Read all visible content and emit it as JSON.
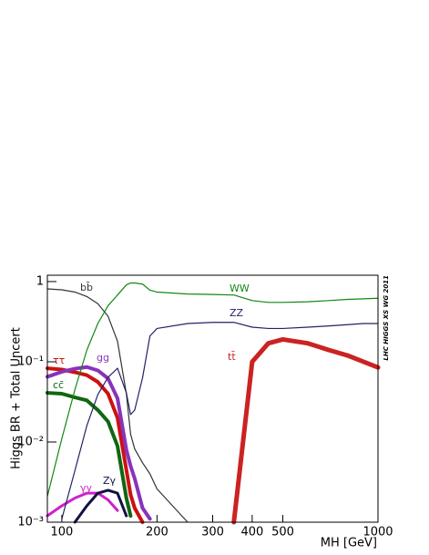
{
  "chart_data": {
    "type": "line",
    "y_label": "Higgs BR + Total Uncert",
    "x_label": "MH [GeV]",
    "annotation": "LHC HIGGS XS WG 2011",
    "xscale": "log",
    "yscale": "log",
    "xlim": [
      90,
      1000
    ],
    "ylim": [
      0.001,
      1.2
    ],
    "xticks": [
      100,
      200,
      300,
      400,
      500,
      1000
    ],
    "yticks": [
      {
        "value": 1,
        "label": "1"
      },
      {
        "value": 0.1,
        "label": "10⁻¹"
      },
      {
        "value": 0.01,
        "label": "10⁻²"
      },
      {
        "value": 0.001,
        "label": "10⁻³"
      }
    ],
    "x": [
      90,
      100,
      110,
      120,
      130,
      140,
      150,
      160,
      165,
      170,
      180,
      190,
      200,
      250,
      300,
      350,
      400,
      450,
      500,
      600,
      700,
      800,
      900,
      1000
    ],
    "series": [
      {
        "name": "bb̄",
        "color": "#333333",
        "values": [
          0.81,
          0.79,
          0.74,
          0.65,
          0.53,
          0.37,
          0.18,
          0.04,
          0.0125,
          0.0082,
          0.0055,
          0.004,
          0.0026,
          0.001,
          null,
          null,
          null,
          null,
          null,
          null,
          null,
          null,
          null,
          null
        ]
      },
      {
        "name": "ττ",
        "color": "#cc1111",
        "values": [
          0.083,
          0.08,
          0.074,
          0.068,
          0.056,
          0.04,
          0.02,
          0.0045,
          0.0022,
          0.0015,
          0.001,
          null,
          null,
          null,
          null,
          null,
          null,
          null,
          null,
          null,
          null,
          null,
          null,
          null
        ]
      },
      {
        "name": "cc̄",
        "color": "#116611",
        "values": [
          0.041,
          0.04,
          0.036,
          0.033,
          0.025,
          0.018,
          0.0089,
          0.002,
          0.0012,
          null,
          null,
          null,
          null,
          null,
          null,
          null,
          null,
          null,
          null,
          null,
          null,
          null,
          null,
          null
        ]
      },
      {
        "name": "gg",
        "color": "#8833bb",
        "values": [
          0.065,
          0.075,
          0.082,
          0.086,
          0.078,
          0.062,
          0.035,
          0.008,
          0.005,
          0.0035,
          0.0015,
          0.0011,
          null,
          null,
          null,
          null,
          null,
          null,
          null,
          null,
          null,
          null,
          null,
          null
        ]
      },
      {
        "name": "γγ",
        "color": "#cc22cc",
        "values": [
          0.0012,
          0.0016,
          0.002,
          0.0023,
          0.0023,
          0.0019,
          0.0014,
          null,
          null,
          null,
          null,
          null,
          null,
          null,
          null,
          null,
          null,
          null,
          null,
          null,
          null,
          null,
          null,
          null
        ]
      },
      {
        "name": "Zγ",
        "color": "#111144",
        "values": [
          null,
          null,
          0.001,
          0.0016,
          0.0023,
          0.0025,
          0.0023,
          0.0012,
          null,
          null,
          null,
          null,
          null,
          null,
          null,
          null,
          null,
          null,
          null,
          null,
          null,
          null,
          null,
          null
        ]
      },
      {
        "name": "WW",
        "color": "#118811",
        "values": [
          0.0021,
          0.011,
          0.045,
          0.14,
          0.3,
          0.5,
          0.68,
          0.91,
          0.96,
          0.96,
          0.93,
          0.78,
          0.74,
          0.7,
          0.69,
          0.68,
          0.58,
          0.55,
          0.55,
          0.56,
          0.58,
          0.6,
          0.61,
          0.62
        ]
      },
      {
        "name": "ZZ",
        "color": "#222266",
        "values": [
          null,
          0.0011,
          0.0044,
          0.016,
          0.039,
          0.064,
          0.083,
          0.041,
          0.022,
          0.025,
          0.063,
          0.21,
          0.26,
          0.3,
          0.31,
          0.31,
          0.27,
          0.26,
          0.26,
          0.27,
          0.28,
          0.29,
          0.3,
          0.3
        ]
      },
      {
        "name": "tt̄",
        "color": "#cc2222",
        "values": [
          null,
          null,
          null,
          null,
          null,
          null,
          null,
          null,
          null,
          null,
          null,
          null,
          null,
          null,
          null,
          0.001,
          0.1,
          0.17,
          0.19,
          0.17,
          0.14,
          0.12,
          0.1,
          0.085
        ]
      }
    ]
  }
}
